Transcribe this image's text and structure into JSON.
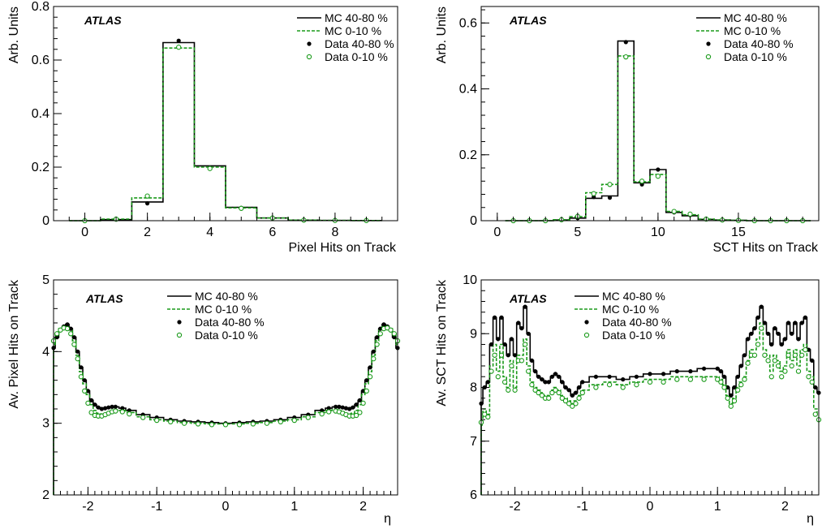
{
  "colors": {
    "mc_40_80": "#000000",
    "mc_0_10": "#1a9a1a",
    "data_40_80": "#000000",
    "data_0_10": "#1a9a1a"
  },
  "chart_data": [
    {
      "type": "histogram",
      "label": "ATLAS",
      "xlabel": "Pixel Hits on Track",
      "ylabel": "Arb. Units",
      "xlim": [
        -1,
        10
      ],
      "ylim": [
        0,
        0.8
      ],
      "xticks": [
        0,
        2,
        4,
        6,
        8
      ],
      "yticks": [
        0,
        0.2,
        0.4,
        0.6,
        0.8
      ],
      "legend": [
        "MC 40-80 %",
        "MC 0-10 %",
        "Data 40-80 %",
        "Data 0-10 %"
      ],
      "bin_centers": [
        0,
        1,
        2,
        3,
        4,
        5,
        6,
        7,
        8,
        9
      ],
      "series": [
        {
          "name": "MC 40-80 %",
          "style": "solid-step",
          "values": [
            0,
            0.004,
            0.07,
            0.665,
            0.205,
            0.05,
            0.01,
            0.002,
            0.001,
            0.0005
          ]
        },
        {
          "name": "MC 0-10 %",
          "style": "dashed-step",
          "values": [
            0,
            0.006,
            0.085,
            0.645,
            0.2,
            0.048,
            0.01,
            0.002,
            0.001,
            0.0005
          ]
        },
        {
          "name": "Data 40-80 %",
          "style": "filled-marker",
          "values": [
            0,
            0.004,
            0.065,
            0.672,
            0.197,
            0.048,
            0.01,
            0.002,
            0.001,
            0.0005
          ]
        },
        {
          "name": "Data 0-10 %",
          "style": "open-marker",
          "values": [
            0,
            0.006,
            0.092,
            0.648,
            0.195,
            0.046,
            0.01,
            0.002,
            0.001,
            0.0005
          ]
        }
      ]
    },
    {
      "type": "histogram",
      "label": "ATLAS",
      "xlabel": "SCT Hits on Track",
      "ylabel": "Arb. Units",
      "xlim": [
        -1,
        20
      ],
      "ylim": [
        0,
        0.65
      ],
      "xticks": [
        0,
        5,
        10,
        15
      ],
      "yticks": [
        0,
        0.2,
        0.4,
        0.6
      ],
      "legend": [
        "MC 40-80 %",
        "MC 0-10 %",
        "Data 40-80 %",
        "Data 0-10 %"
      ],
      "bin_centers": [
        1,
        2,
        3,
        4,
        5,
        6,
        7,
        8,
        9,
        10,
        11,
        12,
        13,
        14,
        15,
        16,
        17,
        18,
        19
      ],
      "series": [
        {
          "name": "MC 40-80 %",
          "style": "solid-step",
          "values": [
            0,
            0,
            0,
            0.002,
            0.008,
            0.068,
            0.075,
            0.545,
            0.115,
            0.155,
            0.025,
            0.015,
            0.004,
            0.002,
            0.001,
            0,
            0,
            0,
            0
          ]
        },
        {
          "name": "MC 0-10 %",
          "style": "dashed-step",
          "values": [
            0,
            0,
            0,
            0.003,
            0.012,
            0.085,
            0.11,
            0.5,
            0.118,
            0.14,
            0.028,
            0.018,
            0.005,
            0.002,
            0.001,
            0,
            0,
            0,
            0
          ]
        },
        {
          "name": "Data 40-80 %",
          "style": "filled-marker",
          "values": [
            0,
            0,
            0,
            0.002,
            0.008,
            0.072,
            0.07,
            0.542,
            0.11,
            0.155,
            0.025,
            0.017,
            0.004,
            0.002,
            0.001,
            0,
            0,
            0,
            0
          ]
        },
        {
          "name": "Data 0-10 %",
          "style": "open-marker",
          "values": [
            0,
            0,
            0,
            0.003,
            0.013,
            0.082,
            0.11,
            0.497,
            0.12,
            0.135,
            0.028,
            0.02,
            0.005,
            0.002,
            0.001,
            0,
            0,
            0,
            0
          ]
        }
      ]
    },
    {
      "type": "profile",
      "label": "ATLAS",
      "xlabel": "η",
      "ylabel": "Av. Pixel Hits on Track",
      "xlim": [
        -2.5,
        2.5
      ],
      "ylim": [
        2,
        5
      ],
      "xticks": [
        -2,
        -1,
        0,
        1,
        2
      ],
      "yticks": [
        2,
        3,
        4,
        5
      ],
      "legend": [
        "MC 40-80 %",
        "MC 0-10 %",
        "Data 40-80 %",
        "Data 0-10 %"
      ],
      "eta_knots": [
        -2.5,
        -2.45,
        -2.4,
        -2.35,
        -2.3,
        -2.25,
        -2.2,
        -2.15,
        -2.1,
        -2.05,
        -2.0,
        -1.95,
        -1.9,
        -1.85,
        -1.8,
        -1.75,
        -1.7,
        -1.65,
        -1.6,
        -1.5,
        -1.4,
        -1.2,
        -1.0,
        -0.8,
        -0.6,
        -0.4,
        -0.2,
        0,
        0.2,
        0.4,
        0.6,
        0.8,
        1.0,
        1.2,
        1.4,
        1.5,
        1.6,
        1.65,
        1.7,
        1.75,
        1.8,
        1.85,
        1.9,
        1.95,
        2.0,
        2.05,
        2.1,
        2.15,
        2.2,
        2.25,
        2.3,
        2.35,
        2.4,
        2.45,
        2.5
      ],
      "series": [
        {
          "name": "MC 40-80 %",
          "style": "solid-step",
          "values": [
            4.05,
            4.2,
            4.3,
            4.35,
            4.38,
            4.32,
            4.2,
            4.0,
            3.78,
            3.6,
            3.45,
            3.32,
            3.26,
            3.22,
            3.2,
            3.21,
            3.22,
            3.23,
            3.23,
            3.21,
            3.18,
            3.12,
            3.08,
            3.05,
            3.03,
            3.02,
            3.01,
            3.0,
            3.01,
            3.02,
            3.03,
            3.05,
            3.08,
            3.12,
            3.18,
            3.21,
            3.23,
            3.23,
            3.22,
            3.21,
            3.2,
            3.22,
            3.26,
            3.32,
            3.45,
            3.6,
            3.78,
            4.0,
            4.2,
            4.32,
            4.38,
            4.35,
            4.3,
            4.2,
            4.05
          ]
        },
        {
          "name": "MC 0-10 %",
          "style": "dashed-step",
          "values": [
            4.1,
            4.25,
            4.32,
            4.34,
            4.35,
            4.3,
            4.15,
            3.95,
            3.72,
            3.55,
            3.4,
            3.26,
            3.18,
            3.14,
            3.13,
            3.14,
            3.16,
            3.18,
            3.19,
            3.18,
            3.15,
            3.09,
            3.05,
            3.03,
            3.01,
            3.0,
            2.99,
            2.99,
            2.99,
            3.0,
            3.01,
            3.03,
            3.05,
            3.09,
            3.15,
            3.18,
            3.19,
            3.18,
            3.16,
            3.14,
            3.13,
            3.14,
            3.18,
            3.26,
            3.4,
            3.55,
            3.72,
            3.95,
            4.15,
            4.3,
            4.35,
            4.34,
            4.32,
            4.25,
            4.1
          ]
        },
        {
          "name": "Data 40-80 %",
          "style": "filled-marker",
          "values": [
            4.05,
            4.2,
            4.3,
            4.35,
            4.38,
            4.32,
            4.2,
            4.0,
            3.78,
            3.6,
            3.45,
            3.32,
            3.26,
            3.22,
            3.2,
            3.21,
            3.22,
            3.23,
            3.23,
            3.21,
            3.18,
            3.12,
            3.08,
            3.05,
            3.03,
            3.02,
            3.01,
            3.0,
            3.01,
            3.02,
            3.03,
            3.05,
            3.08,
            3.12,
            3.18,
            3.21,
            3.23,
            3.23,
            3.22,
            3.21,
            3.2,
            3.22,
            3.26,
            3.32,
            3.45,
            3.6,
            3.78,
            4.0,
            4.2,
            4.32,
            4.38,
            4.35,
            4.3,
            4.2,
            4.05
          ]
        },
        {
          "name": "Data 0-10 %",
          "style": "open-marker",
          "values": [
            4.15,
            4.25,
            4.3,
            4.33,
            4.32,
            4.25,
            4.1,
            3.9,
            3.65,
            3.45,
            3.28,
            3.15,
            3.11,
            3.1,
            3.1,
            3.12,
            3.14,
            3.16,
            3.17,
            3.16,
            3.13,
            3.08,
            3.04,
            3.02,
            3.0,
            2.99,
            2.98,
            2.98,
            2.98,
            2.99,
            3.0,
            3.02,
            3.04,
            3.08,
            3.13,
            3.16,
            3.17,
            3.16,
            3.14,
            3.12,
            3.1,
            3.1,
            3.11,
            3.15,
            3.28,
            3.45,
            3.65,
            3.9,
            4.1,
            4.25,
            4.32,
            4.33,
            4.3,
            4.25,
            4.15
          ]
        }
      ]
    },
    {
      "type": "profile",
      "label": "ATLAS",
      "xlabel": "η",
      "ylabel": "Av. SCT Hits on Track",
      "xlim": [
        -2.5,
        2.5
      ],
      "ylim": [
        6,
        10
      ],
      "xticks": [
        -2,
        -1,
        0,
        1,
        2
      ],
      "yticks": [
        6,
        7,
        8,
        9,
        10
      ],
      "legend": [
        "MC 40-80 %",
        "MC 0-10 %",
        "Data 40-80 %",
        "Data 0-10 %"
      ],
      "eta_knots": [
        -2.5,
        -2.45,
        -2.4,
        -2.35,
        -2.3,
        -2.25,
        -2.2,
        -2.15,
        -2.1,
        -2.05,
        -2.0,
        -1.95,
        -1.9,
        -1.85,
        -1.8,
        -1.75,
        -1.7,
        -1.65,
        -1.6,
        -1.55,
        -1.5,
        -1.45,
        -1.4,
        -1.35,
        -1.3,
        -1.25,
        -1.2,
        -1.15,
        -1.1,
        -1.05,
        -1.0,
        -0.8,
        -0.6,
        -0.4,
        -0.2,
        0,
        0.2,
        0.4,
        0.6,
        0.8,
        1.0,
        1.05,
        1.1,
        1.15,
        1.2,
        1.25,
        1.3,
        1.35,
        1.4,
        1.45,
        1.5,
        1.55,
        1.6,
        1.65,
        1.7,
        1.75,
        1.8,
        1.85,
        1.9,
        1.95,
        2.0,
        2.05,
        2.1,
        2.15,
        2.2,
        2.25,
        2.3,
        2.35,
        2.4,
        2.45,
        2.5
      ],
      "series": [
        {
          "name": "MC 40-80 %",
          "style": "solid-step",
          "values": [
            7.7,
            8.0,
            8.1,
            8.8,
            9.3,
            8.9,
            9.3,
            8.8,
            8.6,
            8.9,
            8.6,
            9.2,
            9.1,
            9.5,
            9.0,
            8.5,
            8.3,
            8.2,
            8.15,
            8.1,
            8.1,
            8.2,
            8.25,
            8.2,
            8.1,
            8.0,
            7.95,
            7.85,
            7.9,
            8.0,
            8.1,
            8.2,
            8.2,
            8.15,
            8.2,
            8.25,
            8.25,
            8.3,
            8.3,
            8.35,
            8.35,
            8.3,
            8.2,
            8.0,
            7.85,
            8.0,
            8.2,
            8.4,
            8.6,
            8.9,
            9.0,
            9.1,
            9.3,
            9.5,
            9.2,
            9.0,
            8.8,
            9.1,
            9.0,
            8.8,
            8.9,
            9.2,
            9.0,
            9.2,
            8.9,
            9.2,
            9.3,
            8.7,
            8.5,
            8.0,
            7.9
          ]
        },
        {
          "name": "MC 0-10 %",
          "style": "dashed-step",
          "values": [
            7.3,
            7.6,
            7.5,
            8.4,
            8.8,
            8.3,
            8.8,
            8.2,
            8.0,
            8.5,
            8.0,
            8.6,
            8.6,
            8.9,
            8.4,
            8.1,
            8.0,
            7.95,
            7.9,
            7.85,
            7.85,
            7.95,
            8.0,
            7.95,
            7.85,
            7.8,
            7.75,
            7.7,
            7.75,
            7.85,
            7.95,
            8.05,
            8.1,
            8.05,
            8.1,
            8.15,
            8.15,
            8.2,
            8.2,
            8.2,
            8.2,
            8.15,
            8.05,
            7.85,
            7.7,
            7.8,
            8.0,
            8.1,
            8.2,
            8.5,
            8.7,
            8.7,
            8.9,
            9.2,
            8.7,
            8.6,
            8.3,
            8.6,
            8.5,
            8.3,
            8.4,
            8.7,
            8.5,
            8.7,
            8.4,
            8.7,
            8.8,
            8.3,
            8.2,
            7.6,
            7.5
          ]
        },
        {
          "name": "Data 40-80 %",
          "style": "filled-marker",
          "values": [
            7.7,
            8.0,
            8.1,
            8.8,
            9.3,
            8.9,
            9.3,
            8.8,
            8.6,
            8.9,
            8.6,
            9.2,
            9.1,
            9.5,
            9.0,
            8.5,
            8.3,
            8.2,
            8.15,
            8.1,
            8.1,
            8.2,
            8.25,
            8.2,
            8.1,
            8.0,
            7.95,
            7.85,
            7.9,
            8.0,
            8.1,
            8.2,
            8.2,
            8.15,
            8.2,
            8.25,
            8.25,
            8.3,
            8.3,
            8.35,
            8.35,
            8.3,
            8.2,
            8.0,
            7.85,
            8.0,
            8.2,
            8.4,
            8.6,
            8.9,
            9.0,
            9.1,
            9.3,
            9.5,
            9.2,
            9.0,
            8.8,
            9.1,
            9.0,
            8.8,
            8.9,
            9.2,
            9.0,
            9.2,
            8.9,
            9.2,
            9.3,
            8.7,
            8.5,
            8.0,
            7.9
          ]
        },
        {
          "name": "Data 0-10 %",
          "style": "open-marker",
          "values": [
            7.35,
            7.5,
            7.45,
            8.3,
            8.6,
            8.2,
            8.6,
            8.1,
            7.95,
            8.4,
            7.95,
            8.5,
            8.5,
            8.8,
            8.3,
            8.05,
            7.95,
            7.9,
            7.85,
            7.8,
            7.8,
            7.9,
            7.95,
            7.9,
            7.8,
            7.75,
            7.7,
            7.65,
            7.7,
            7.8,
            7.9,
            8.0,
            8.05,
            8.0,
            8.05,
            8.1,
            8.1,
            8.15,
            8.15,
            8.15,
            8.15,
            8.1,
            8.0,
            7.8,
            7.65,
            7.75,
            7.95,
            8.05,
            8.15,
            8.45,
            8.6,
            8.6,
            8.8,
            9.1,
            8.6,
            8.5,
            8.2,
            8.5,
            8.4,
            8.2,
            8.3,
            8.6,
            8.4,
            8.6,
            8.3,
            8.6,
            8.7,
            8.2,
            8.1,
            7.5,
            7.4
          ]
        }
      ]
    }
  ]
}
